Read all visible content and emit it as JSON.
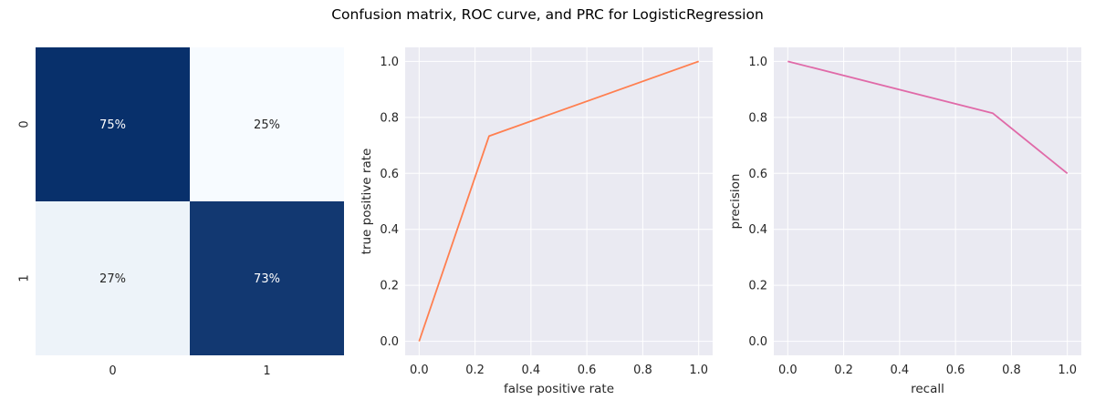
{
  "figure": {
    "title": "Confusion matrix, ROC curve, and PRC for LogisticRegression"
  },
  "colors": {
    "heatmap_dark": "#08306b",
    "heatmap_light": "#f7fbff",
    "axes_bg": "#eaeaf2",
    "grid": "#ffffff",
    "roc_line": "#ff7f50",
    "prc_line": "#e06aa8",
    "text": "#262626"
  },
  "chart_data": [
    {
      "type": "heatmap",
      "title": "",
      "row_labels": [
        "0",
        "1"
      ],
      "col_labels": [
        "0",
        "1"
      ],
      "values": [
        [
          0.75,
          0.25
        ],
        [
          0.27,
          0.73
        ]
      ],
      "annotations": [
        [
          "75%",
          "25%"
        ],
        [
          "27%",
          "73%"
        ]
      ],
      "colormap": "Blues",
      "colorbar": false
    },
    {
      "type": "line",
      "title": "",
      "xlabel": "false positive rate",
      "ylabel": "true positive rate",
      "series": [
        {
          "x": [
            0.0,
            0.25,
            1.0
          ],
          "y": [
            0.0,
            0.733,
            1.0
          ]
        }
      ],
      "xlim": [
        -0.05,
        1.05
      ],
      "ylim": [
        -0.05,
        1.05
      ],
      "xticks": [
        "0.0",
        "0.2",
        "0.4",
        "0.6",
        "0.8",
        "1.0"
      ],
      "yticks": [
        "0.0",
        "0.2",
        "0.4",
        "0.6",
        "0.8",
        "1.0"
      ],
      "grid": true
    },
    {
      "type": "line",
      "title": "",
      "xlabel": "recall",
      "ylabel": "precision",
      "series": [
        {
          "x": [
            0.0,
            0.733,
            1.0
          ],
          "y": [
            1.0,
            0.815,
            0.6
          ]
        }
      ],
      "xlim": [
        -0.05,
        1.05
      ],
      "ylim": [
        -0.05,
        1.05
      ],
      "xticks": [
        "0.0",
        "0.2",
        "0.4",
        "0.6",
        "0.8",
        "1.0"
      ],
      "yticks": [
        "0.0",
        "0.2",
        "0.4",
        "0.6",
        "0.8",
        "1.0"
      ],
      "grid": true
    }
  ]
}
